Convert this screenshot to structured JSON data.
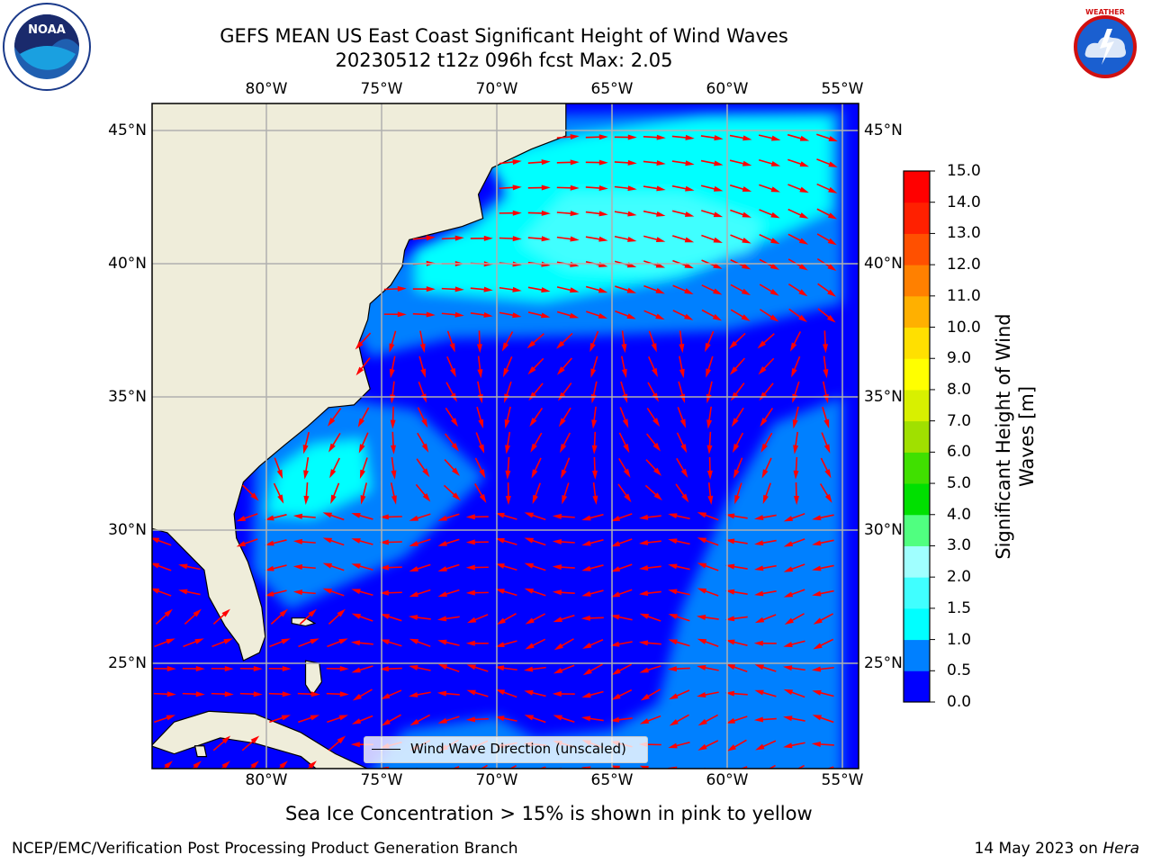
{
  "title": {
    "line1": "GEFS MEAN US East Coast Significant Height of Wind Waves",
    "line2": "20230512 t12z 096h fcst   Max: 2.05"
  },
  "logos": {
    "left": "noaa-logo",
    "right": "national-weather-service-logo"
  },
  "map": {
    "lon_labels": [
      "80°W",
      "75°W",
      "70°W",
      "65°W",
      "60°W",
      "55°W"
    ],
    "lat_labels": [
      "45°N",
      "40°N",
      "35°N",
      "30°N",
      "25°N"
    ],
    "lon_range": [
      "85°W",
      "54.5°W"
    ],
    "lat_range": [
      "20.5°N",
      "46°N"
    ],
    "arrow_color": "#ff0000",
    "land_color": "#efedda",
    "grid_color": "#b0b0b0"
  },
  "legend": {
    "label": "Wind Wave Direction (unscaled)"
  },
  "colorbar": {
    "label_line1": "Significant Height of Wind",
    "label_line2": "Waves [m]",
    "ticks": [
      "0.0",
      "0.5",
      "1.0",
      "1.5",
      "2.0",
      "3.0",
      "4.0",
      "5.0",
      "6.0",
      "7.0",
      "8.0",
      "9.0",
      "10.0",
      "11.0",
      "12.0",
      "13.0",
      "14.0",
      "15.0"
    ],
    "colors": [
      "#0000ff",
      "#0080ff",
      "#00ffff",
      "#40ffff",
      "#a0ffff",
      "#50ff80",
      "#00e000",
      "#40e000",
      "#a0e000",
      "#d8f000",
      "#ffff00",
      "#ffe000",
      "#ffb000",
      "#ff8000",
      "#ff5000",
      "#ff2000",
      "#ff0000"
    ]
  },
  "notes": {
    "sea_ice": "Sea Ice Concentration > 15% is shown in pink to yellow"
  },
  "footer": {
    "left": "NCEP/EMC/Verification Post Processing Product Generation Branch",
    "date": "14 May 2023 on ",
    "machine": "Hera"
  }
}
